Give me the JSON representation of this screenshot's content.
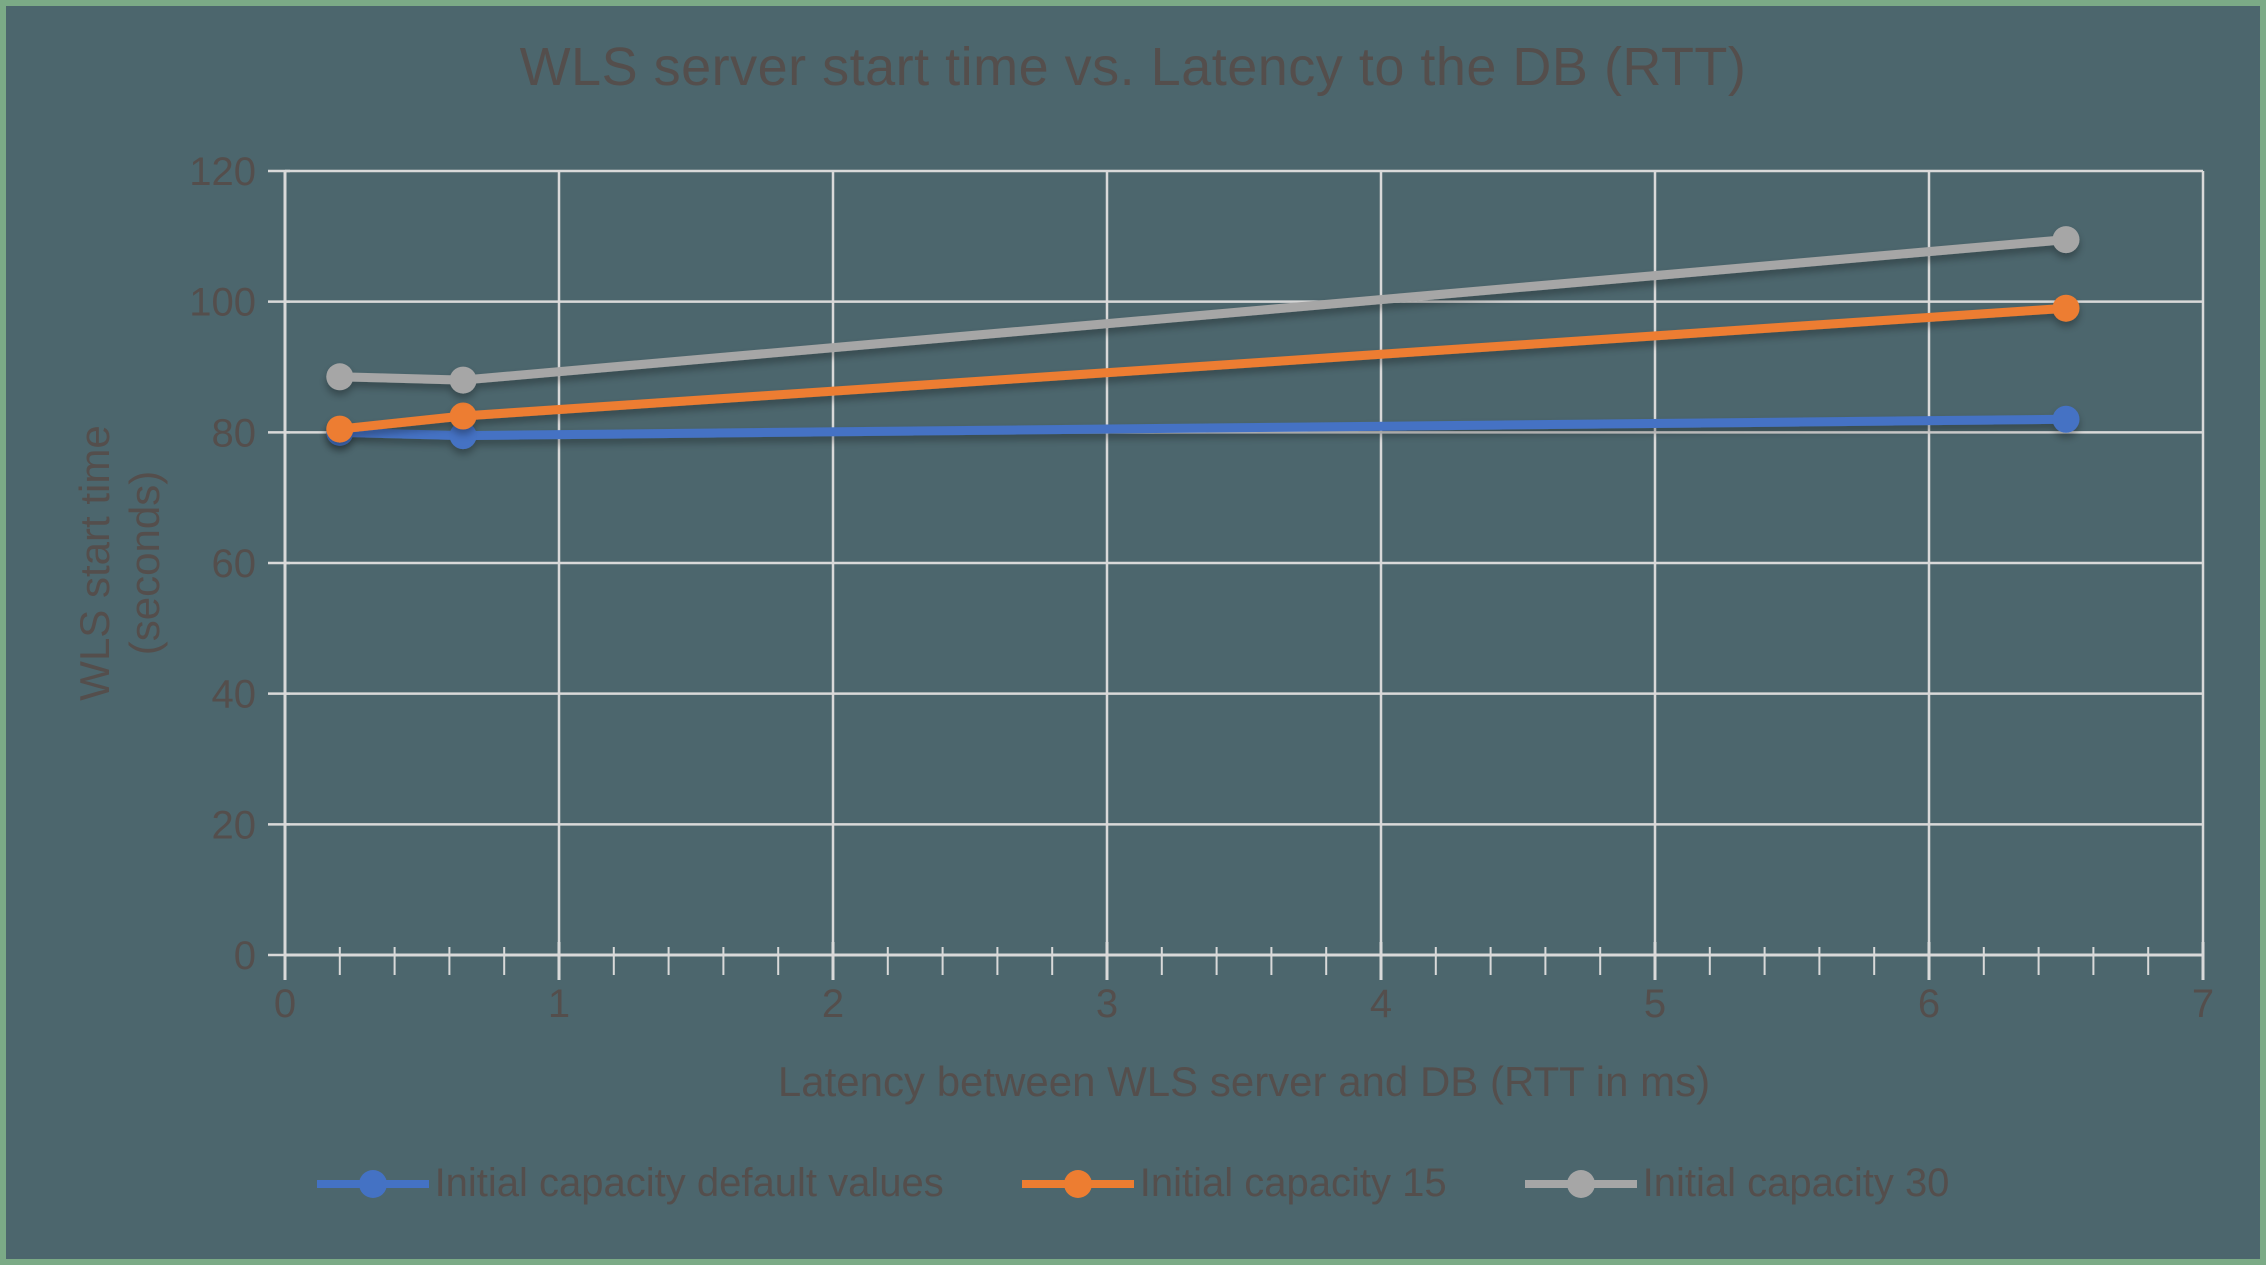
{
  "chart_data": {
    "type": "line",
    "title": "WLS server start time vs. Latency to the DB (RTT)",
    "xlabel": "Latency between WLS server and DB (RTT in ms)",
    "ylabel": "WLS start time (seconds)",
    "ylabel_lines": [
      "WLS start time",
      "(seconds)"
    ],
    "xlim": [
      0,
      7
    ],
    "ylim": [
      0,
      120
    ],
    "x_major_ticks": [
      0,
      1,
      2,
      3,
      4,
      5,
      6,
      7
    ],
    "x_minor_step": 0.2,
    "y_major_ticks": [
      0,
      20,
      40,
      60,
      80,
      100,
      120
    ],
    "grid": true,
    "legend_position": "bottom",
    "series": [
      {
        "name": "Initial capacity default values",
        "color": "#4472C4",
        "x": [
          0.2,
          0.65,
          6.5
        ],
        "y": [
          80,
          79.5,
          82
        ]
      },
      {
        "name": "Initial capacity 15",
        "color": "#ED7D31",
        "x": [
          0.2,
          0.65,
          6.5
        ],
        "y": [
          80.5,
          82.5,
          99
        ]
      },
      {
        "name": "Initial capacity 30",
        "color": "#A6A6A6",
        "x": [
          0.2,
          0.65,
          6.5
        ],
        "y": [
          88.5,
          88,
          109.5
        ]
      }
    ]
  },
  "colors": {
    "background": "#4C666D",
    "frame_border": "#7BAA86",
    "text": "#544E4C",
    "gridline": "#D9D9D9"
  }
}
